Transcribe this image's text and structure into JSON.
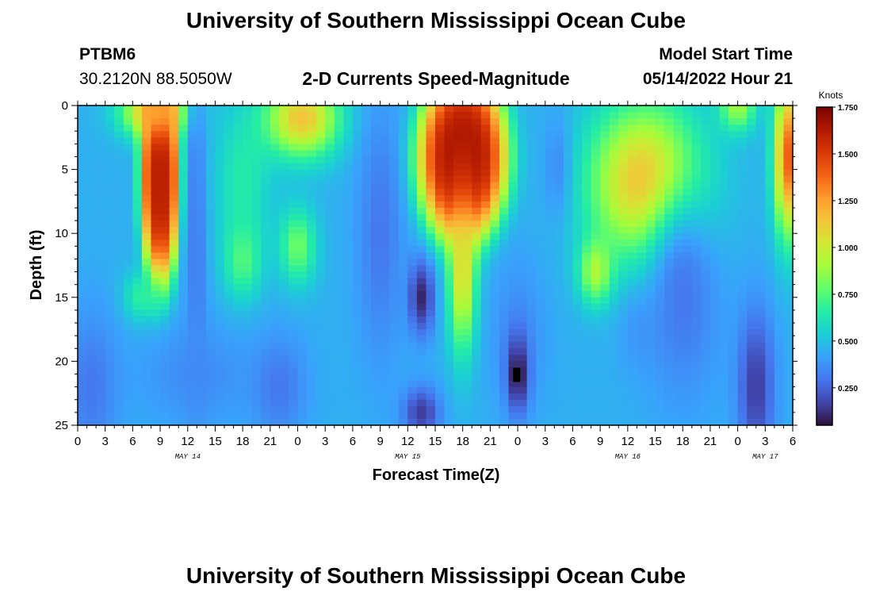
{
  "page": {
    "title_top": "University of Southern Mississippi Ocean Cube",
    "title_bottom": "University of Southern Mississippi Ocean Cube",
    "station": "PTBM6",
    "coords": "30.2120N  88.5050W",
    "subtitle": "2-D Currents Speed-Magnitude",
    "model_start_label": "Model Start Time",
    "model_start_value": "05/14/2022 Hour 21"
  },
  "colors": {
    "background": "#ffffff",
    "text": "#000000",
    "colormap": [
      "#30123b",
      "#4145ab",
      "#4675ed",
      "#39a2fc",
      "#1bcfd4",
      "#24eca6",
      "#61fc6c",
      "#a4fc3b",
      "#d1e834",
      "#f3c63a",
      "#fe9b2d",
      "#f36315",
      "#d93806",
      "#b11901",
      "#7a0402"
    ]
  },
  "chart_data": {
    "type": "heatmap",
    "title": "2-D Currents Speed-Magnitude",
    "xlabel": "Forecast Time(Z)",
    "ylabel": "Depth (ft)",
    "xlim": [
      0,
      78
    ],
    "ylim": [
      0,
      25
    ],
    "y_inverted": true,
    "x_ticks": [
      0,
      3,
      6,
      9,
      12,
      15,
      18,
      21,
      24,
      27,
      30,
      33,
      36,
      39,
      42,
      45,
      48,
      51,
      54,
      57,
      60,
      63,
      66,
      69,
      72,
      75,
      78
    ],
    "x_tick_labels": [
      "0",
      "3",
      "6",
      "9",
      "12",
      "15",
      "18",
      "21",
      "0",
      "3",
      "6",
      "9",
      "12",
      "15",
      "18",
      "21",
      "0",
      "3",
      "6",
      "9",
      "12",
      "15",
      "18",
      "21",
      "0",
      "3",
      "6"
    ],
    "y_ticks": [
      0,
      5,
      10,
      15,
      20,
      25
    ],
    "y_tick_labels": [
      "0",
      "5",
      "10",
      "15",
      "20",
      "25"
    ],
    "date_labels": [
      {
        "text": "MAY 14",
        "x": 12
      },
      {
        "text": "MAY 15",
        "x": 36
      },
      {
        "text": "MAY 16",
        "x": 60
      },
      {
        "text": "MAY 17",
        "x": 75
      }
    ],
    "colorbar": {
      "title": "Knots",
      "min": 0.05,
      "max": 1.75,
      "ticks": [
        0.25,
        0.5,
        0.75,
        1.0,
        1.25,
        1.5,
        1.75
      ],
      "tick_labels": [
        "0.250",
        "0.500",
        "0.750",
        "1.000",
        "1.250",
        "1.500",
        "1.750"
      ]
    },
    "features": [
      {
        "x": 9,
        "depth": 5.5,
        "speed": 1.6,
        "sx": 2.2,
        "sy": 9,
        "p": 2
      },
      {
        "x": 8.5,
        "depth": 0.5,
        "speed": 1.25,
        "sx": 3.5,
        "sy": 2,
        "p": 1
      },
      {
        "x": 7,
        "depth": 15,
        "speed": 0.7,
        "sx": 2,
        "sy": 2,
        "p": 1
      },
      {
        "x": 13,
        "depth": 10,
        "speed": 0.3,
        "sx": 1.2,
        "sy": 14,
        "p": 1
      },
      {
        "x": 1.5,
        "depth": 22,
        "speed": 0.3,
        "sx": 3,
        "sy": 6,
        "p": 1
      },
      {
        "x": 13,
        "depth": 21,
        "speed": 0.35,
        "sx": 6,
        "sy": 4,
        "p": 1
      },
      {
        "x": 18,
        "depth": 6,
        "speed": 0.65,
        "sx": 3,
        "sy": 6,
        "p": 1
      },
      {
        "x": 18,
        "depth": 12,
        "speed": 0.75,
        "sx": 2,
        "sy": 3,
        "p": 1
      },
      {
        "x": 24,
        "depth": 11,
        "speed": 0.8,
        "sx": 2,
        "sy": 3,
        "p": 1
      },
      {
        "x": 24.5,
        "depth": 1,
        "speed": 1.15,
        "sx": 4,
        "sy": 3,
        "p": 1
      },
      {
        "x": 22,
        "depth": 22,
        "speed": 0.3,
        "sx": 3,
        "sy": 4,
        "p": 1
      },
      {
        "x": 33,
        "depth": 10,
        "speed": 0.3,
        "sx": 2.5,
        "sy": 10,
        "p": 1
      },
      {
        "x": 37.5,
        "depth": 15,
        "speed": 0.1,
        "sx": 1.4,
        "sy": 3,
        "p": 1
      },
      {
        "x": 37.5,
        "depth": 24,
        "speed": 0.15,
        "sx": 2,
        "sy": 2,
        "p": 1
      },
      {
        "x": 42,
        "depth": 4,
        "speed": 1.65,
        "sx": 5,
        "sy": 7,
        "p": 2
      },
      {
        "x": 42,
        "depth": 13,
        "speed": 1.1,
        "sx": 1.5,
        "sy": 6,
        "p": 1
      },
      {
        "x": 48,
        "depth": 18,
        "speed": 0.35,
        "sx": 3,
        "sy": 6,
        "p": 1
      },
      {
        "x": 48,
        "depth": 21,
        "speed": 0.05,
        "sx": 1.2,
        "sy": 3,
        "p": 1
      },
      {
        "x": 52.5,
        "depth": 5,
        "speed": 0.3,
        "sx": 1.6,
        "sy": 4,
        "p": 1
      },
      {
        "x": 56.5,
        "depth": 13,
        "speed": 0.9,
        "sx": 1.8,
        "sy": 2.5,
        "p": 1
      },
      {
        "x": 62,
        "depth": 6,
        "speed": 1.2,
        "sx": 6,
        "sy": 6,
        "p": 1
      },
      {
        "x": 61,
        "depth": 18,
        "speed": 0.4,
        "sx": 2,
        "sy": 3,
        "p": 1
      },
      {
        "x": 66,
        "depth": 15,
        "speed": 0.3,
        "sx": 4,
        "sy": 8,
        "p": 1
      },
      {
        "x": 74,
        "depth": 22,
        "speed": 0.15,
        "sx": 2,
        "sy": 6,
        "p": 1
      },
      {
        "x": 77.5,
        "depth": 4,
        "speed": 1.4,
        "sx": 1.5,
        "sy": 6,
        "p": 1
      },
      {
        "x": 72,
        "depth": 0,
        "speed": 0.9,
        "sx": 2,
        "sy": 2,
        "p": 1
      }
    ]
  }
}
